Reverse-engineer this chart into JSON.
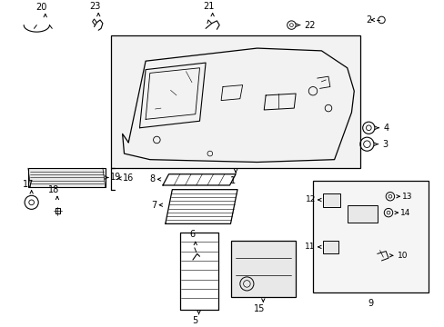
{
  "bg": "#ffffff",
  "lc": "#000000",
  "gray_fill": "#e8e8e8",
  "light_fill": "#f2f2f2",
  "box_fill": "#f5f5f5"
}
